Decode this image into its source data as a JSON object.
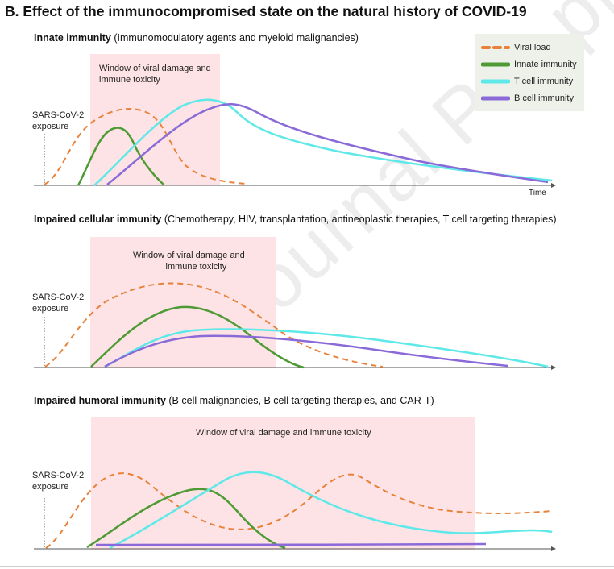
{
  "figure_title": "B. Effect of the immunocompromised state on the natural history of COVID-19",
  "watermark": "Journal Pre-proof",
  "colors": {
    "viral_load": "#e8823a",
    "innate": "#4e9a35",
    "t_cell": "#5ee8e8",
    "b_cell": "#8a6ad8",
    "window": "#fde3e5",
    "legend_bg": "#eef0ea"
  },
  "legend": [
    {
      "key": "viral_load",
      "label": "Viral load",
      "style": "dashed"
    },
    {
      "key": "innate",
      "label": "Innate immunity",
      "style": "solid"
    },
    {
      "key": "t_cell",
      "label": "T cell immunity",
      "style": "solid"
    },
    {
      "key": "b_cell",
      "label": "B cell immunity",
      "style": "solid"
    }
  ],
  "panels": [
    {
      "title_bold": "Innate immunity",
      "title_rest": " (Immunomodulatory agents and myeloid malignancies)",
      "window_label_lines": [
        "Window of viral damage and",
        "immune toxicity"
      ],
      "exposure_lines": [
        "SARS-CoV-2",
        "exposure"
      ],
      "axis_label": "Time"
    },
    {
      "title_bold": "Impaired cellular immunity",
      "title_rest": " (Chemotherapy, HIV, transplantation, antineoplastic therapies, T cell targeting therapies)",
      "window_label_lines": [
        "Window of viral damage and",
        "immune toxicity"
      ],
      "exposure_lines": [
        "SARS-CoV-2",
        "exposure"
      ],
      "axis_label": ""
    },
    {
      "title_bold": "Impaired humoral immunity",
      "title_rest": " (B cell malignancies, B cell targeting therapies, and CAR-T)",
      "window_label_lines": [
        "Window of viral damage and immune toxicity"
      ],
      "exposure_lines": [
        "SARS-CoV-2",
        "exposure"
      ],
      "axis_label": ""
    }
  ]
}
